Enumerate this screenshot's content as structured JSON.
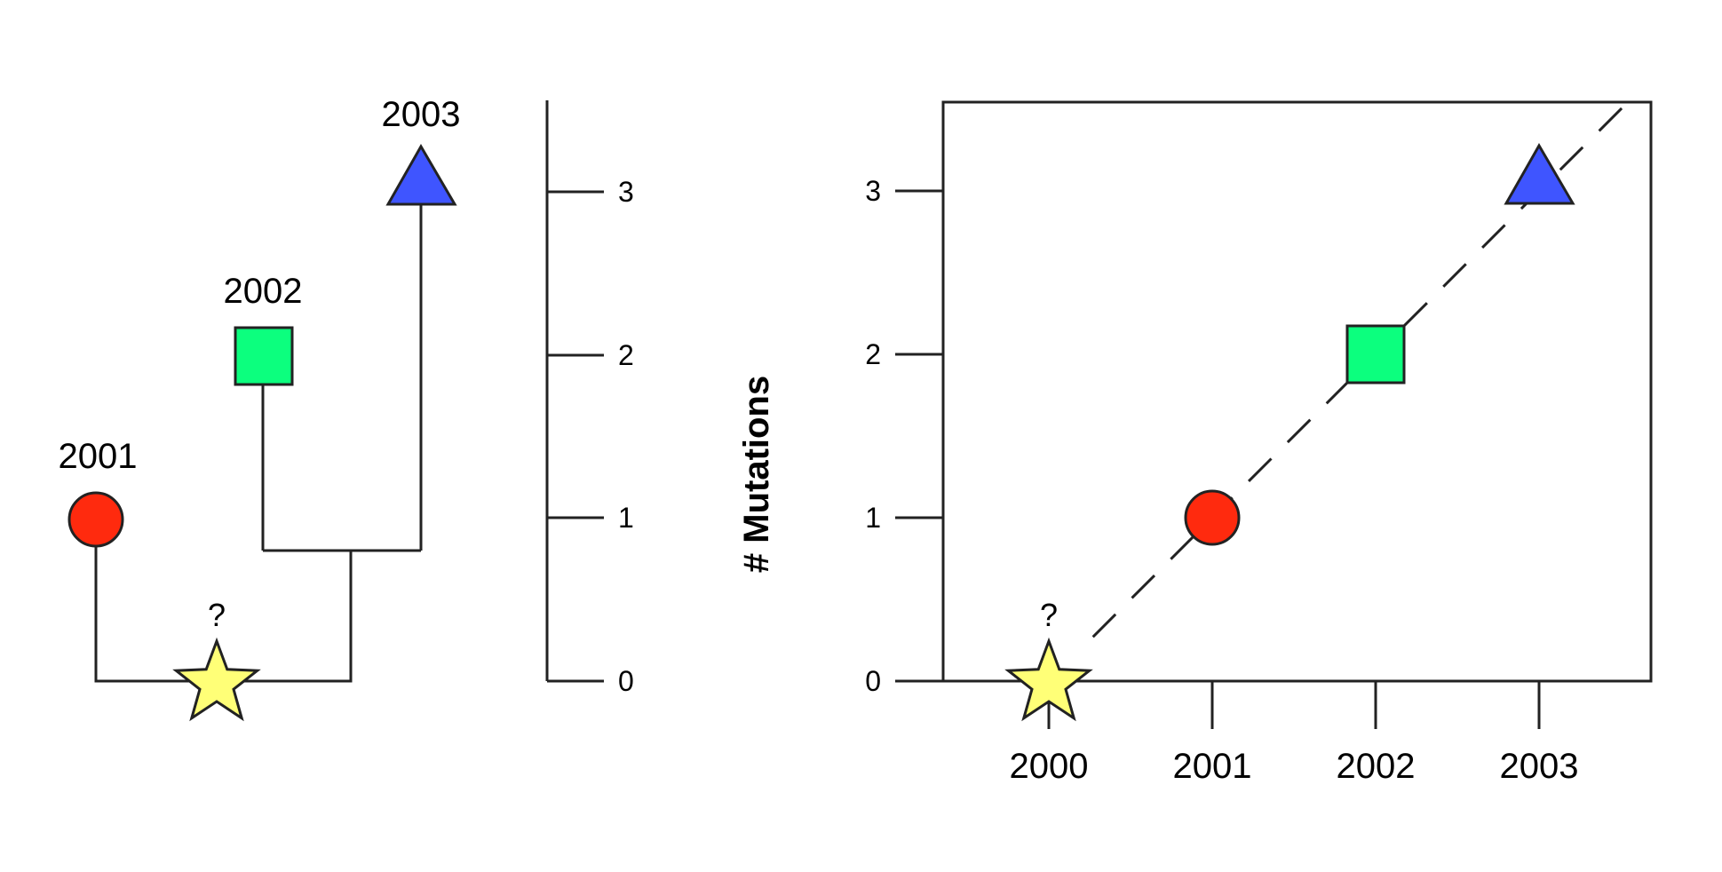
{
  "colors": {
    "line": "#222222",
    "circle": "#FF2A0E",
    "square": "#0CFF7E",
    "triangle": "#3F55FF",
    "star": "#FFFF77"
  },
  "tree": {
    "root_label": "?",
    "scale_ticks": [
      "0",
      "1",
      "2",
      "3"
    ],
    "tips": [
      {
        "label": "2001",
        "mutations": 1,
        "shape": "circle-icon"
      },
      {
        "label": "2002",
        "mutations": 2,
        "shape": "square-icon"
      },
      {
        "label": "2003",
        "mutations": 3,
        "shape": "triangle-icon"
      }
    ]
  },
  "chart_data": {
    "type": "scatter",
    "ylabel": "# Mutations",
    "xlabel": "",
    "x_ticks": [
      "2000",
      "2001",
      "2002",
      "2003"
    ],
    "y_ticks": [
      "0",
      "1",
      "2",
      "3"
    ],
    "points": [
      {
        "x": 2000,
        "y": 0,
        "label": "?",
        "shape": "star-icon"
      },
      {
        "x": 2001,
        "y": 1,
        "shape": "circle-icon"
      },
      {
        "x": 2002,
        "y": 2,
        "shape": "square-icon"
      },
      {
        "x": 2003,
        "y": 3,
        "shape": "triangle-icon"
      }
    ],
    "trend_line": {
      "style": "dashed",
      "slope": 1,
      "intercept_year": 2000
    },
    "grid": false,
    "legend": "none"
  }
}
